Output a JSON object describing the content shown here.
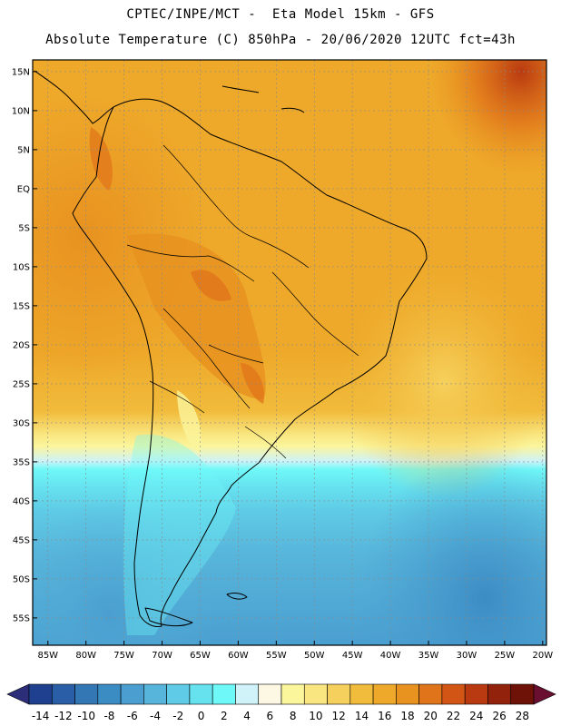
{
  "header": {
    "line1": "CPTEC/INPE/MCT -  Eta Model 15km - GFS",
    "line2": "Absolute Temperature (C) 850hPa - 20/06/2020 12UTC fct=43h"
  },
  "map": {
    "lon_range": [
      -87,
      -19.5
    ],
    "lat_range": [
      -58.5,
      16.5
    ],
    "lat_ticks": [
      "15N",
      "10N",
      "5N",
      "EQ",
      "5S",
      "10S",
      "15S",
      "20S",
      "25S",
      "30S",
      "35S",
      "40S",
      "45S",
      "50S",
      "55S"
    ],
    "lat_values": [
      15,
      10,
      5,
      0,
      -5,
      -10,
      -15,
      -20,
      -25,
      -30,
      -35,
      -40,
      -45,
      -50,
      -55
    ],
    "lon_ticks": [
      "85W",
      "80W",
      "75W",
      "70W",
      "65W",
      "60W",
      "55W",
      "50W",
      "45W",
      "40W",
      "35W",
      "30W",
      "25W",
      "20W"
    ],
    "lon_values": [
      -85,
      -80,
      -75,
      -70,
      -65,
      -60,
      -55,
      -50,
      -45,
      -40,
      -35,
      -30,
      -25,
      -20
    ]
  },
  "colorbar": {
    "labels": [
      "-14",
      "-12",
      "-10",
      "-8",
      "-6",
      "-4",
      "-2",
      "0",
      "2",
      "4",
      "6",
      "8",
      "10",
      "12",
      "14",
      "16",
      "18",
      "20",
      "22",
      "24",
      "26",
      "28"
    ],
    "colors": [
      "#1f3f8f",
      "#2a5ea6",
      "#3377b5",
      "#3c8cc4",
      "#4a9fd0",
      "#57b4da",
      "#5fcbe6",
      "#66e2ef",
      "#6ff8f8",
      "#cff3f8",
      "#fdf8e4",
      "#fbf59c",
      "#f9e680",
      "#f6d05c",
      "#f1bb3b",
      "#eea92a",
      "#e89220",
      "#e0741a",
      "#d35515",
      "#b93a10",
      "#93220c",
      "#6e1208"
    ]
  }
}
